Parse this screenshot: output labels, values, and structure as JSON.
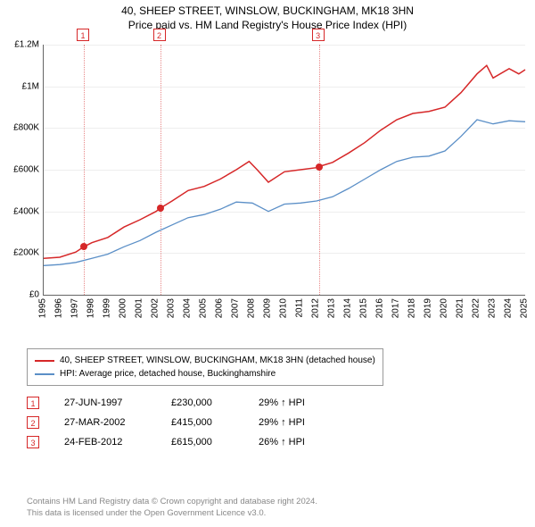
{
  "title_line1": "40, SHEEP STREET, WINSLOW, BUCKINGHAM, MK18 3HN",
  "title_line2": "Price paid vs. HM Land Registry's House Price Index (HPI)",
  "chart": {
    "type": "line",
    "background_color": "#ffffff",
    "grid_color": "#eeeeee",
    "axis_color": "#666666",
    "label_fontsize": 10,
    "title_fontsize": 12,
    "x": {
      "min": 1995,
      "max": 2025,
      "ticks": [
        1995,
        1996,
        1997,
        1998,
        1999,
        2000,
        2001,
        2002,
        2003,
        2004,
        2005,
        2006,
        2007,
        2008,
        2009,
        2010,
        2011,
        2012,
        2013,
        2014,
        2015,
        2016,
        2017,
        2018,
        2019,
        2020,
        2021,
        2022,
        2023,
        2024,
        2025
      ]
    },
    "y": {
      "min": 0,
      "max": 1200000,
      "ticks": [
        {
          "v": 0,
          "label": "£0"
        },
        {
          "v": 200000,
          "label": "£200K"
        },
        {
          "v": 400000,
          "label": "£400K"
        },
        {
          "v": 600000,
          "label": "£600K"
        },
        {
          "v": 800000,
          "label": "£800K"
        },
        {
          "v": 1000000,
          "label": "£1M"
        },
        {
          "v": 1200000,
          "label": "£1.2M"
        }
      ]
    },
    "series": [
      {
        "name": "40, SHEEP STREET, WINSLOW, BUCKINGHAM, MK18 3HN (detached house)",
        "color": "#d62728",
        "width": 1.5,
        "points": [
          [
            1995,
            175000
          ],
          [
            1996,
            180000
          ],
          [
            1997,
            205000
          ],
          [
            1997.5,
            230000
          ],
          [
            1998,
            250000
          ],
          [
            1999,
            275000
          ],
          [
            2000,
            325000
          ],
          [
            2001,
            360000
          ],
          [
            2002,
            400000
          ],
          [
            2002.25,
            415000
          ],
          [
            2003,
            450000
          ],
          [
            2004,
            500000
          ],
          [
            2005,
            520000
          ],
          [
            2006,
            555000
          ],
          [
            2007,
            600000
          ],
          [
            2007.8,
            640000
          ],
          [
            2008.3,
            600000
          ],
          [
            2009,
            540000
          ],
          [
            2010,
            590000
          ],
          [
            2011,
            600000
          ],
          [
            2012,
            610000
          ],
          [
            2012.15,
            615000
          ],
          [
            2013,
            635000
          ],
          [
            2014,
            680000
          ],
          [
            2015,
            730000
          ],
          [
            2016,
            790000
          ],
          [
            2017,
            840000
          ],
          [
            2018,
            870000
          ],
          [
            2019,
            880000
          ],
          [
            2020,
            900000
          ],
          [
            2021,
            970000
          ],
          [
            2022,
            1060000
          ],
          [
            2022.6,
            1100000
          ],
          [
            2023,
            1040000
          ],
          [
            2024,
            1085000
          ],
          [
            2024.6,
            1060000
          ],
          [
            2025,
            1080000
          ]
        ]
      },
      {
        "name": "HPI: Average price, detached house, Buckinghamshire",
        "color": "#5b8fc7",
        "width": 1.3,
        "points": [
          [
            1995,
            140000
          ],
          [
            1996,
            145000
          ],
          [
            1997,
            155000
          ],
          [
            1998,
            175000
          ],
          [
            1999,
            195000
          ],
          [
            2000,
            230000
          ],
          [
            2001,
            260000
          ],
          [
            2002,
            300000
          ],
          [
            2003,
            335000
          ],
          [
            2004,
            370000
          ],
          [
            2005,
            385000
          ],
          [
            2006,
            410000
          ],
          [
            2007,
            445000
          ],
          [
            2008,
            440000
          ],
          [
            2009,
            400000
          ],
          [
            2010,
            435000
          ],
          [
            2011,
            440000
          ],
          [
            2012,
            450000
          ],
          [
            2013,
            470000
          ],
          [
            2014,
            510000
          ],
          [
            2015,
            555000
          ],
          [
            2016,
            600000
          ],
          [
            2017,
            640000
          ],
          [
            2018,
            660000
          ],
          [
            2019,
            665000
          ],
          [
            2020,
            690000
          ],
          [
            2021,
            760000
          ],
          [
            2022,
            840000
          ],
          [
            2023,
            820000
          ],
          [
            2024,
            835000
          ],
          [
            2025,
            830000
          ]
        ]
      }
    ],
    "sale_markers": [
      {
        "n": "1",
        "year": 1997.5,
        "price": 230000
      },
      {
        "n": "2",
        "year": 2002.25,
        "price": 415000
      },
      {
        "n": "3",
        "year": 2012.15,
        "price": 615000
      }
    ],
    "marker_color": "#d62728"
  },
  "legend": {
    "items": [
      {
        "color": "#d62728",
        "label": "40, SHEEP STREET, WINSLOW, BUCKINGHAM, MK18 3HN (detached house)"
      },
      {
        "color": "#5b8fc7",
        "label": "HPI: Average price, detached house, Buckinghamshire"
      }
    ]
  },
  "events": [
    {
      "n": "1",
      "date": "27-JUN-1997",
      "price": "£230,000",
      "delta": "29% ↑ HPI"
    },
    {
      "n": "2",
      "date": "27-MAR-2002",
      "price": "£415,000",
      "delta": "29% ↑ HPI"
    },
    {
      "n": "3",
      "date": "24-FEB-2012",
      "price": "£615,000",
      "delta": "26% ↑ HPI"
    }
  ],
  "footer_line1": "Contains HM Land Registry data © Crown copyright and database right 2024.",
  "footer_line2": "This data is licensed under the Open Government Licence v3.0."
}
